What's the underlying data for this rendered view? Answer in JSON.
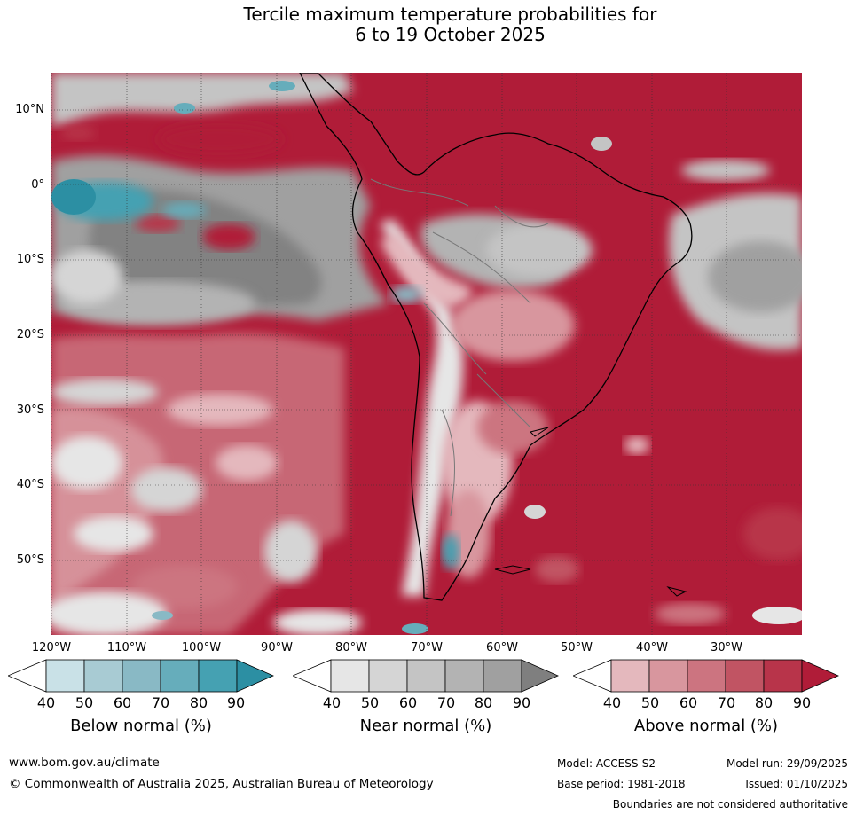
{
  "title": {
    "line1": "Tercile maximum temperature probabilities for",
    "line2": "6 to 19 October 2025"
  },
  "map": {
    "lat_labels": [
      "10°N",
      "0°",
      "10°S",
      "20°S",
      "30°S",
      "40°S",
      "50°S"
    ],
    "lon_labels": [
      "120°W",
      "110°W",
      "100°W",
      "90°W",
      "80°W",
      "70°W",
      "60°W",
      "50°W",
      "40°W",
      "30°W"
    ]
  },
  "colorbars": [
    {
      "label": "Below normal (%)",
      "ticks": [
        "40",
        "50",
        "60",
        "70",
        "80",
        "90"
      ],
      "colors": [
        "#ffffff",
        "#c9e1e7",
        "#a8cbd3",
        "#89b9c5",
        "#66adbb",
        "#45a1b2",
        "#2c8fa3"
      ]
    },
    {
      "label": "Near normal (%)",
      "ticks": [
        "40",
        "50",
        "60",
        "70",
        "80",
        "90"
      ],
      "colors": [
        "#ffffff",
        "#e6e6e6",
        "#d5d5d5",
        "#c4c4c4",
        "#b3b3b3",
        "#a0a0a0",
        "#7f7f7f"
      ]
    },
    {
      "label": "Above normal (%)",
      "ticks": [
        "40",
        "50",
        "60",
        "70",
        "80",
        "90"
      ],
      "colors": [
        "#ffffff",
        "#e4b8bd",
        "#d8969e",
        "#cc7480",
        "#c15463",
        "#b8344a",
        "#b01c38"
      ]
    }
  ],
  "footer": {
    "website": "www.bom.gov.au/climate",
    "copyright": "© Commonwealth of Australia 2025, Australian Bureau of Meteorology",
    "model": "Model: ACCESS-S2",
    "model_run": "Model run: 29/09/2025",
    "base_period": "Base period: 1981-2018",
    "issued": "Issued: 01/10/2025",
    "disclaimer": "Boundaries are not considered authoritative"
  }
}
